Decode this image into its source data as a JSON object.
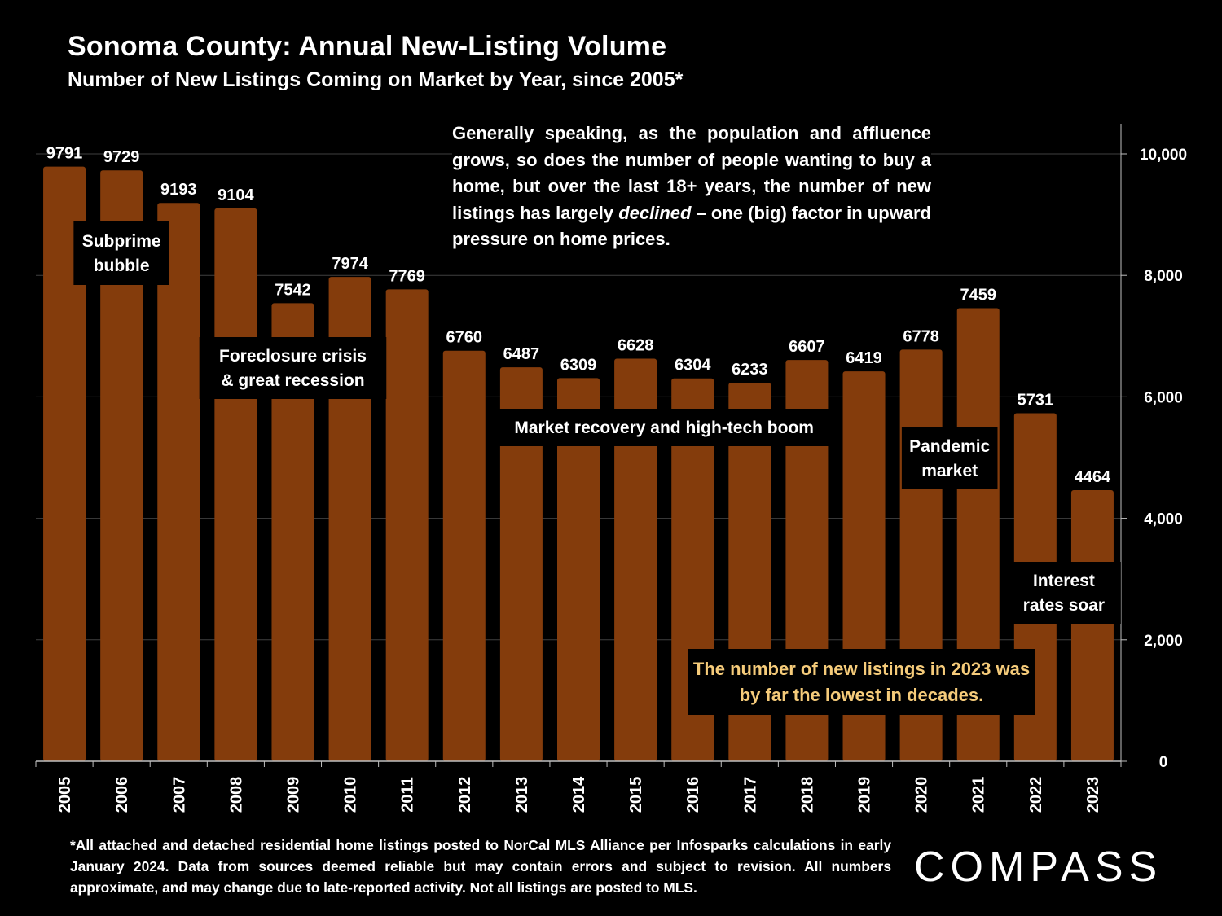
{
  "title": "Sonoma County: Annual New-Listing Volume",
  "subtitle": "Number of New Listings Coming on Market by Year, since 2005*",
  "intro_note": {
    "before": "Generally speaking, as the population and affluence grows, so does the number of people wanting to buy a home, but over the last 18+ years, the number of new listings has largely ",
    "emphasis": "declined",
    "after": " – one (big) factor in upward pressure on home prices."
  },
  "highlight_note": "The number of new listings in 2023 was by far the lowest in decades.",
  "footnote": "*All attached and detached residential home listings posted to NorCal MLS Alliance per Infosparks calculations in early January 2024. Data from sources deemed reliable but may contain errors and subject to revision. All numbers approximate, and may change due to late-reported activity. Not all listings are posted to MLS.",
  "logo_text": "COMPASS",
  "colors": {
    "background": "#000000",
    "bar": "#843c0c",
    "text": "#ffffff",
    "highlight_text": "#f5cb7a",
    "gridline": "#404040"
  },
  "chart_data": {
    "type": "bar",
    "title": "Sonoma County: Annual New-Listing Volume",
    "xlabel": "",
    "ylabel": "",
    "ylim": [
      0,
      10500
    ],
    "yticks": [
      0,
      2000,
      4000,
      6000,
      8000,
      10000
    ],
    "ytick_labels": [
      "0",
      "2,000",
      "4,000",
      "6,000",
      "8,000",
      "10,000"
    ],
    "y_axis_side": "right",
    "grid": true,
    "categories": [
      "2005",
      "2006",
      "2007",
      "2008",
      "2009",
      "2010",
      "2011",
      "2012",
      "2013",
      "2014",
      "2015",
      "2016",
      "2017",
      "2018",
      "2019",
      "2020",
      "2021",
      "2022",
      "2023"
    ],
    "values": [
      9791,
      9729,
      9193,
      9104,
      7542,
      7974,
      7769,
      6760,
      6487,
      6309,
      6628,
      6304,
      6233,
      6607,
      6419,
      6778,
      7459,
      5731,
      4464
    ],
    "value_labels": [
      "9791",
      "9729",
      "9193",
      "9104",
      "7542",
      "7974",
      "7769",
      "6760",
      "6487",
      "6309",
      "6628",
      "6304",
      "6233",
      "6607",
      "6419",
      "6778",
      "7459",
      "5731",
      "4464"
    ],
    "annotations": [
      {
        "lines": [
          "Subprime",
          "bubble"
        ],
        "span": [
          "2005",
          "2007"
        ]
      },
      {
        "lines": [
          "Foreclosure crisis",
          "& great recession"
        ],
        "span": [
          "2008",
          "2010"
        ]
      },
      {
        "lines": [
          "Market recovery and high-tech boom"
        ],
        "span": [
          "2012",
          "2019"
        ]
      },
      {
        "lines": [
          "Pandemic",
          "market"
        ],
        "span": [
          "2020",
          "2021"
        ]
      },
      {
        "lines": [
          "Interest",
          "rates soar"
        ],
        "span": [
          "2022",
          "2023"
        ]
      }
    ]
  }
}
